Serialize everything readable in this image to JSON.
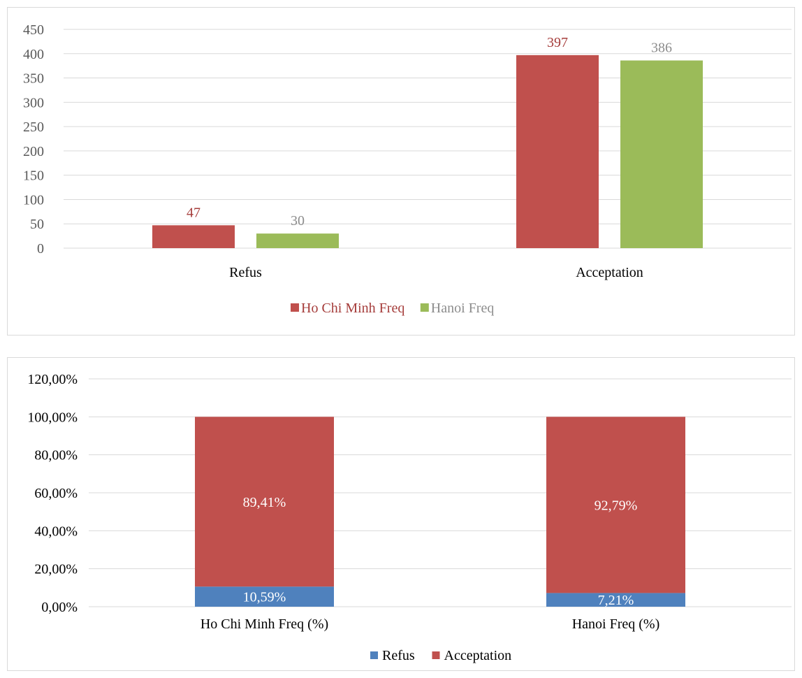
{
  "chart_data": [
    {
      "type": "bar",
      "categories": [
        "Refus",
        "Acceptation"
      ],
      "series": [
        {
          "name": "Ho Chi Minh Freq",
          "values": [
            47,
            397
          ],
          "color": "#c0504d",
          "label_color": "#a53c3a"
        },
        {
          "name": "Hanoi Freq",
          "values": [
            30,
            386
          ],
          "color": "#9bbb59",
          "label_color": "#8c8c8c"
        }
      ],
      "ylim": [
        0,
        450
      ],
      "yticks": [
        0,
        50,
        100,
        150,
        200,
        250,
        300,
        350,
        400,
        450
      ],
      "ytick_labels": [
        "0",
        "50",
        "100",
        "150",
        "200",
        "250",
        "300",
        "350",
        "400",
        "450"
      ],
      "grid": true,
      "legend": "bottom"
    },
    {
      "type": "bar",
      "stacked": true,
      "categories": [
        "Ho Chi Minh Freq (%)",
        "Hanoi Freq (%)"
      ],
      "series": [
        {
          "name": "Refus",
          "values": [
            10.59,
            7.21
          ],
          "labels": [
            "10,59%",
            "7,21%"
          ],
          "color": "#4f81bd"
        },
        {
          "name": "Acceptation",
          "values": [
            89.41,
            92.79
          ],
          "labels": [
            "89,41%",
            "92,79%"
          ],
          "color": "#c0504d"
        }
      ],
      "ylim": [
        0,
        120
      ],
      "yticks": [
        0,
        20,
        40,
        60,
        80,
        100,
        120
      ],
      "ytick_labels": [
        "0,00%",
        "20,00%",
        "40,00%",
        "60,00%",
        "80,00%",
        "100,00%",
        "120,00%"
      ],
      "grid": true,
      "legend": "bottom"
    }
  ]
}
